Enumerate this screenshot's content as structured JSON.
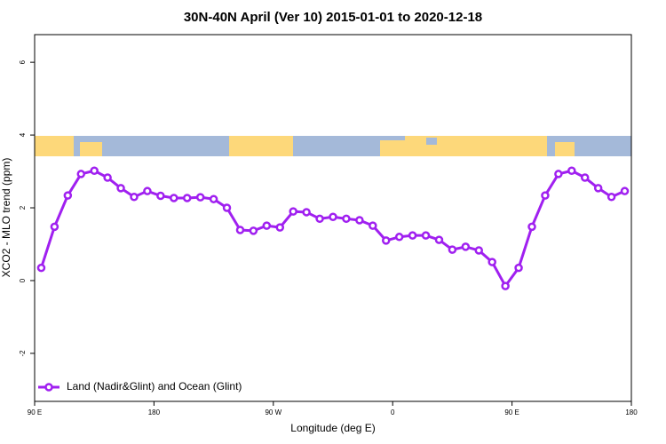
{
  "chart_data": {
    "type": "line",
    "title": "30N-40N April (Ver 10)   2015-01-01 to 2020-12-18",
    "x_label": "Longitude (deg E)",
    "y_label": "XCO2 - MLO trend (ppm)",
    "x": [
      95,
      105,
      115,
      125,
      135,
      145,
      155,
      165,
      175,
      185,
      195,
      205,
      215,
      225,
      235,
      245,
      255,
      265,
      275,
      285,
      295,
      305,
      315,
      325,
      335,
      345,
      355,
      365,
      375,
      385,
      395,
      405,
      415,
      425,
      435,
      445,
      455,
      465,
      475,
      485,
      495,
      505,
      515,
      525,
      535
    ],
    "series": [
      {
        "name": "Land (Nadir&Glint) and Ocean (Glint)",
        "color": "#a020f0",
        "values": [
          0.35,
          1.48,
          2.34,
          2.93,
          3.02,
          2.83,
          2.54,
          2.3,
          2.46,
          2.33,
          2.27,
          2.27,
          2.29,
          2.24,
          2.0,
          1.39,
          1.37,
          1.51,
          1.46,
          1.9,
          1.88,
          1.7,
          1.75,
          1.7,
          1.66,
          1.51,
          1.1,
          1.2,
          1.24,
          1.24,
          1.12,
          0.85,
          0.93,
          0.83,
          0.51,
          -0.15,
          0.35,
          1.48,
          2.34,
          2.93,
          3.02,
          2.83,
          2.54,
          2.3,
          2.46
        ]
      }
    ],
    "xlim": [
      90,
      540
    ],
    "xticks": [
      {
        "value": 90,
        "label": "90 E"
      },
      180,
      {
        "value": 270,
        "label": "90 W"
      },
      {
        "value": 360,
        "label": "0"
      },
      {
        "value": 450,
        "label": "90 E"
      },
      {
        "value": 540,
        "label": "180"
      }
    ],
    "ylim": [
      -3.32,
      6.76
    ],
    "yticks": [
      -2,
      0,
      2,
      4,
      6
    ],
    "legend": "bottom-left"
  }
}
